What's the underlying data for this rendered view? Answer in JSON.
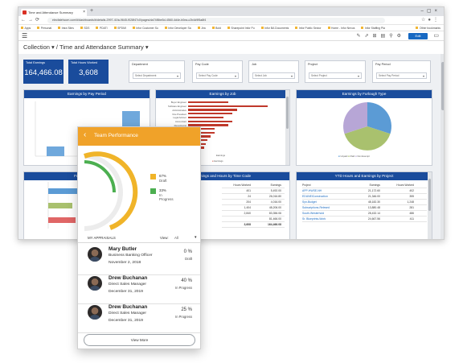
{
  "browser": {
    "tab_title": "Time and Attendance Summary",
    "url": "elecfatehcom.com/#/dashboards/b/details-2997-41fa-9645-f028f47c0/pages/da74f8be5d-4560-4d4e-b0ea-c2b4d9f5a8f4",
    "bookmarks": [
      "Apps",
      "Personal",
      "Intra Sites",
      "SDS",
      "PDATI",
      "SPDMI",
      "Infor Customer Su",
      "Infor Developer Sa",
      "Jira",
      "Bold",
      "Sharepoint Infor Pu",
      "Infor BA Documents",
      "Infor Public Sector",
      "Home - Infor Nexus",
      "Infor Staffing Pla"
    ],
    "other_bookmarks": "Other bookmarks"
  },
  "app": {
    "edit_label": "Edit",
    "breadcrumb_root": "Collection",
    "breadcrumb_page": "Time and Attendance Summary"
  },
  "kpis": [
    {
      "label": "Total Earnings",
      "value": "164,466.08"
    },
    {
      "label": "Total Hours Worked",
      "value": "3,608"
    }
  ],
  "filters": [
    {
      "label": "Department",
      "value": "Select Department"
    },
    {
      "label": "Pay Code",
      "value": "Select Pay Code"
    },
    {
      "label": "Job",
      "value": "Select Job"
    },
    {
      "label": "Project",
      "value": "Select Project"
    },
    {
      "label": "Pay Period",
      "value": "Select Pay Period"
    }
  ],
  "panels": {
    "earnings_by_pay_period": "Earnings by Pay Period",
    "earnings_by_job": "Earnings by Job",
    "earnings_by_furlough": "Earnings by Furlough Type",
    "furlough_hours": "Furlough Hours",
    "hours_by_time_code": "Earnings and Hours by Time Code",
    "ytd_by_project": "YTD Hours and Earnings by Project"
  },
  "job_chart": {
    "labels": [
      "Buyer Engineer",
      "Software Engineer",
      "Administrative",
      "Vice President",
      "Legal Advisor",
      "Accountant",
      "Receptionist",
      "Sales Manager",
      "Manager",
      "HR Manager",
      "Sales Rep",
      "Engineer",
      "Analyst"
    ],
    "values": [
      0.45,
      0.9,
      0.55,
      0.5,
      0.4,
      0.5,
      0.45,
      0.3,
      0.3,
      0.25,
      0.22,
      0.2,
      0.18
    ],
    "xlabel": "Earnings",
    "legend": "Earnings"
  },
  "pie_legend": [
    "Unpaid",
    "Paid",
    "Non Exempt"
  ],
  "time_code_table": {
    "headers": [
      "Hours Worked",
      "Earnings"
    ],
    "rows": [
      [
        "401",
        "5,492.00"
      ],
      [
        "24",
        "26,016.80"
      ],
      [
        "204",
        "4,016.00"
      ],
      [
        "1,404",
        "48,206.00"
      ],
      [
        "2,840",
        "83,356.06"
      ],
      [
        "",
        "81,466.00"
      ]
    ],
    "total": [
      "3,608",
      "164,466.08"
    ]
  },
  "project_table": {
    "headers": [
      "Project",
      "Earnings",
      "Hours Worked"
    ],
    "rows": [
      [
        "APP-HWSE-NH",
        "21,172.60",
        "402"
      ],
      [
        "EDUNEIConstruction",
        "21,346.00",
        "355"
      ],
      [
        "Syn-Budget",
        "48,182.30",
        "1,248"
      ],
      [
        "Subscriptions-Relesed",
        "13,880.48",
        "281"
      ],
      [
        "South-Westerhold",
        "28,432.14",
        "486"
      ],
      [
        "Sr. Blueprints-Work",
        "24,667.56",
        "411"
      ]
    ]
  },
  "card": {
    "title": "Team Performance",
    "legend": [
      {
        "pct": "67%",
        "name": "Draft",
        "color": "#f0b429"
      },
      {
        "pct": "33%",
        "name": "In Progress",
        "color": "#4caf50"
      }
    ],
    "appraisals_label": "MY APPRAISALS",
    "view_label": "View:",
    "view_value": "All",
    "appraisals": [
      {
        "name": "Mary Butler",
        "role": "Business Banking Officer",
        "date": "November 2, 2018",
        "pct": "0 %",
        "status": "Draft"
      },
      {
        "name": "Drew Buchanan",
        "role": "Direct Sales Manager",
        "date": "December 31, 2019",
        "pct": "40 %",
        "status": "In Progress"
      },
      {
        "name": "Drew Buchanan",
        "role": "Direct Sales Manager",
        "date": "December 31, 2019",
        "pct": "25 %",
        "status": "In Progress"
      }
    ],
    "view_more": "View More"
  }
}
